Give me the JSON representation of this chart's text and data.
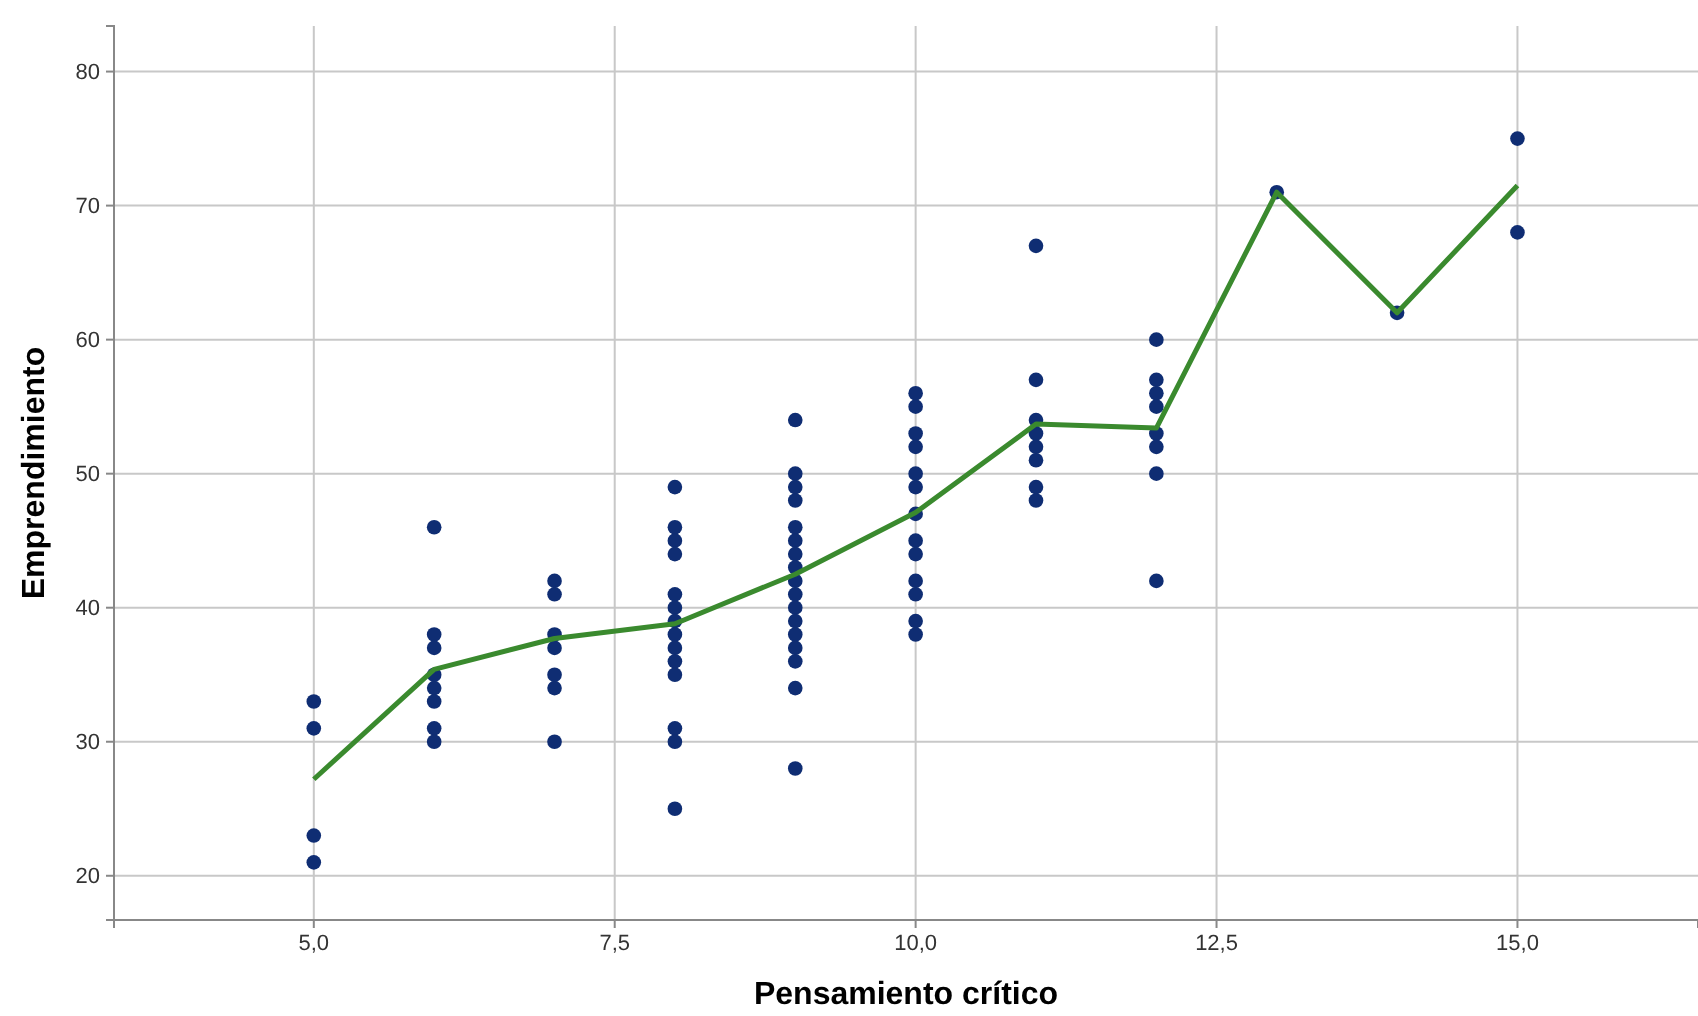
{
  "chart_data": {
    "type": "scatter",
    "xlabel": "Pensamiento crítico",
    "ylabel": "Emprendimiento",
    "xlim": [
      3.34,
      16.5
    ],
    "ylim": [
      16.7,
      83.4
    ],
    "xticks": [
      {
        "value": 5,
        "label": "5,0"
      },
      {
        "value": 7.5,
        "label": "7,5"
      },
      {
        "value": 10,
        "label": "10,0"
      },
      {
        "value": 12.5,
        "label": "12,5"
      },
      {
        "value": 15,
        "label": "15,0"
      }
    ],
    "yticks": [
      20,
      30,
      40,
      50,
      60,
      70,
      80
    ],
    "grid": true,
    "marker": "circle",
    "series": [
      {
        "color": "#0f2d73",
        "x": [
          5,
          5,
          5,
          5,
          6,
          6,
          6,
          6,
          6,
          6,
          6,
          6,
          7,
          7,
          7,
          7,
          7,
          7,
          7,
          8,
          8,
          8,
          8,
          8,
          8,
          8,
          8,
          8,
          8,
          8,
          8,
          8,
          8,
          9,
          9,
          9,
          9,
          9,
          9,
          9,
          9,
          9,
          9,
          9,
          9,
          9,
          9,
          9,
          9,
          9,
          10,
          10,
          10,
          10,
          10,
          10,
          10,
          10,
          10,
          10,
          10,
          10,
          10,
          11,
          11,
          11,
          11,
          11,
          11,
          11,
          11,
          12,
          12,
          12,
          12,
          12,
          12,
          12,
          12,
          13,
          14,
          15,
          15
        ],
        "values": [
          33,
          31,
          23,
          21,
          46,
          38,
          37,
          35,
          34,
          33,
          31,
          30,
          42,
          41,
          38,
          37,
          35,
          34,
          30,
          49,
          46,
          45,
          44,
          41,
          40,
          39,
          38,
          37,
          36,
          35,
          31,
          30,
          25,
          54,
          50,
          49,
          48,
          46,
          45,
          44,
          43,
          42,
          41,
          40,
          39,
          38,
          37,
          36,
          34,
          28,
          56,
          55,
          53,
          52,
          50,
          49,
          47,
          45,
          44,
          42,
          41,
          39,
          38,
          67,
          57,
          54,
          53,
          52,
          51,
          49,
          48,
          60,
          57,
          56,
          55,
          53,
          52,
          50,
          42,
          71,
          62,
          75,
          68
        ]
      },
      {
        "type": "line",
        "color": "#3a8a2e",
        "line_style": "solid",
        "marker": "none",
        "x": [
          5,
          6,
          7,
          8,
          9,
          10,
          11,
          12,
          13,
          14,
          15
        ],
        "values": [
          27.2,
          35.4,
          37.7,
          38.8,
          42.5,
          47.1,
          53.7,
          53.4,
          71,
          62,
          71.5
        ]
      }
    ]
  }
}
